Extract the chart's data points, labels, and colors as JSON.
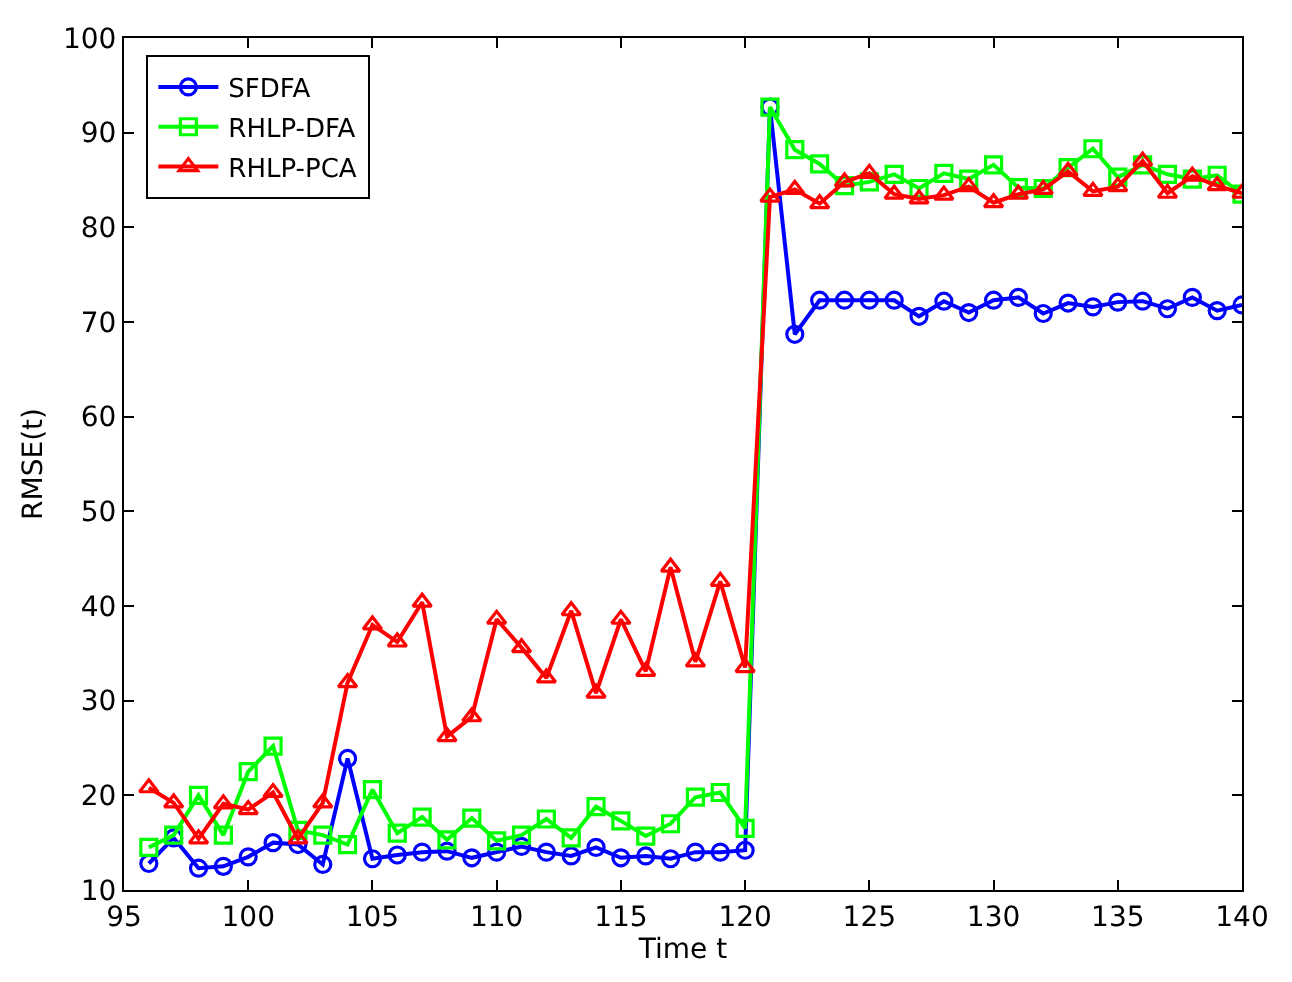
{
  "chart_data": {
    "type": "line",
    "xlabel": "Time t",
    "ylabel": "RMSE(t)",
    "x": [
      96,
      97,
      98,
      99,
      100,
      101,
      102,
      103,
      104,
      105,
      106,
      107,
      108,
      109,
      110,
      111,
      112,
      113,
      114,
      115,
      116,
      117,
      118,
      119,
      120,
      121,
      122,
      123,
      124,
      125,
      126,
      127,
      128,
      129,
      130,
      131,
      132,
      133,
      134,
      135,
      136,
      137,
      138,
      139,
      140
    ],
    "series": [
      {
        "name": "SFDFA",
        "color": "#0000ff",
        "marker": "circle",
        "values": [
          12.8,
          15.5,
          12.3,
          12.5,
          13.5,
          15,
          14.8,
          12.7,
          23.9,
          13.3,
          13.7,
          14,
          14.1,
          13.4,
          14,
          14.6,
          14,
          13.6,
          14.5,
          13.4,
          13.6,
          13.3,
          14,
          14,
          14.2,
          92.7,
          68.7,
          72.3,
          72.3,
          72.3,
          72.3,
          70.6,
          72.2,
          71,
          72.3,
          72.6,
          70.9,
          72,
          71.6,
          72.1,
          72.2,
          71.4,
          72.6,
          71.2,
          71.8
        ]
      },
      {
        "name": "RHLP-DFA",
        "color": "#00ff00",
        "marker": "square",
        "values": [
          14.5,
          15.8,
          20,
          15.8,
          22.5,
          25.2,
          16.3,
          15.8,
          14.8,
          20.6,
          16,
          17.7,
          15.3,
          17.6,
          15.2,
          15.8,
          17.5,
          15.5,
          18.8,
          17.3,
          15.7,
          17,
          19.8,
          20.3,
          16.5,
          92.7,
          88.2,
          86.7,
          84.4,
          84.8,
          85.6,
          84.1,
          85.7,
          85.1,
          86.6,
          84.2,
          84.1,
          86.3,
          88.3,
          85.3,
          86.6,
          85.6,
          85.1,
          85.5,
          83.5
        ]
      },
      {
        "name": "RHLP-PCA",
        "color": "#ff0000",
        "marker": "triangle",
        "values": [
          20.8,
          19.2,
          15.4,
          19.1,
          18.5,
          20.3,
          15.4,
          19.2,
          31.9,
          38,
          36.2,
          40.4,
          26.2,
          28.3,
          38.6,
          35.6,
          32.4,
          39.5,
          30.8,
          38.6,
          33.1,
          44.1,
          34.1,
          42.6,
          33.5,
          83.2,
          84,
          82.5,
          84.8,
          85.7,
          83.5,
          83,
          83.4,
          84.3,
          82.6,
          83.5,
          84,
          85.9,
          83.8,
          84.3,
          87,
          83.6,
          85.4,
          84.4,
          83.6
        ]
      }
    ],
    "xlim": [
      95,
      140
    ],
    "xticks": [
      95,
      100,
      105,
      110,
      115,
      120,
      125,
      130,
      135,
      140
    ],
    "ylim": [
      10,
      100
    ],
    "yticks": [
      10,
      20,
      30,
      40,
      50,
      60,
      70,
      80,
      90,
      100
    ],
    "legend": "top left",
    "line_style": "solid"
  }
}
